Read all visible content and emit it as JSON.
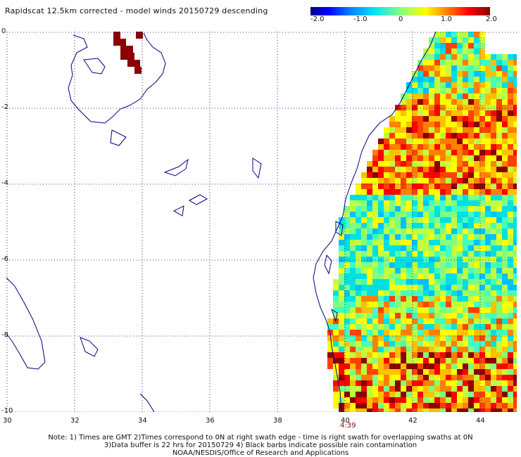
{
  "title": "Rapidscat 12.5km corrected - model winds 20150729 descending",
  "colorbar": {
    "labels": [
      "-2.0",
      "-1.0",
      "0",
      "1.0",
      "2.0"
    ],
    "colors": [
      "#00008b",
      "#0000ff",
      "#0080ff",
      "#00e0ff",
      "#80ff80",
      "#ffff00",
      "#ff8000",
      "#ff0000",
      "#8b0000"
    ]
  },
  "axes": {
    "x_ticks": [
      "30",
      "32",
      "34",
      "36",
      "38",
      "40",
      "42",
      "44"
    ],
    "y_ticks": [
      "0",
      "-2",
      "-4",
      "-6",
      "-8",
      "-10"
    ]
  },
  "swath_time": "4:39",
  "notes": [
    "Note: 1) Times are GMT 2)Times correspond to 0N at right swath edge - time is right swath for overlapping swaths at 0N",
    "3)Data buffer is 22 hrs for 20150729 4) Black barbs indicate possible rain contamination",
    "NOAA/NESDIS/Office of Research and Applications"
  ],
  "colors": {
    "coastline": "#000080",
    "grid": "#000080",
    "rain_flag": "#8b0000"
  }
}
